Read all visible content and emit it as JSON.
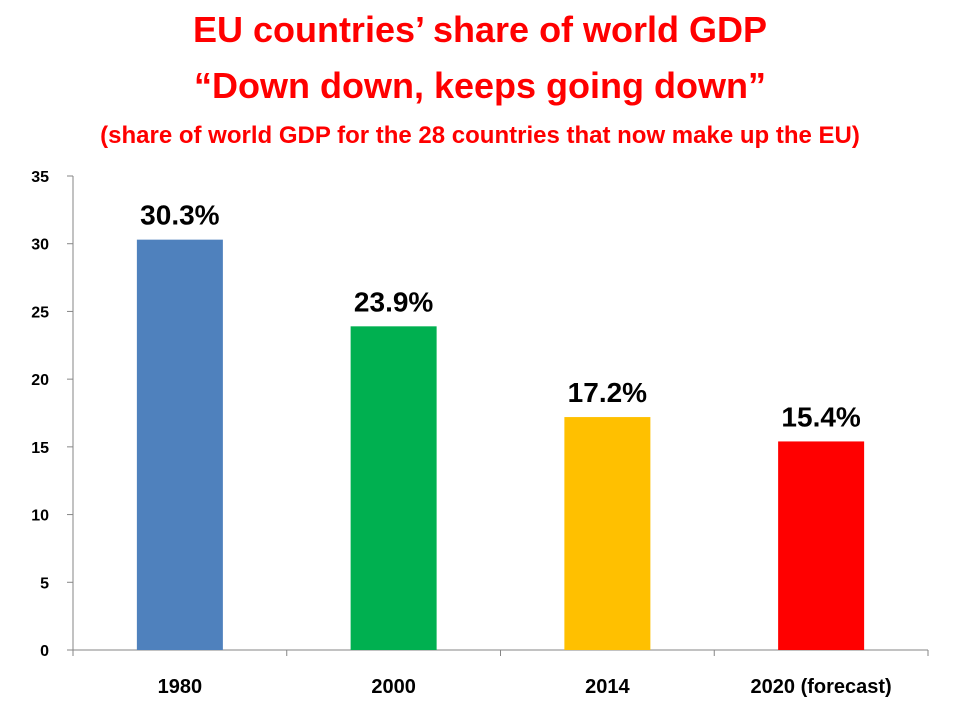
{
  "slide": {
    "title_line1": "EU countries’ share of world GDP",
    "title_line2": "“Down down, keeps going down”",
    "subtitle": "(share of world GDP for the 28 countries that now make up the EU)"
  },
  "chart_data": {
    "type": "bar",
    "title": "",
    "xlabel": "",
    "ylabel": "",
    "categories": [
      "1980",
      "2000",
      "2014",
      "2020 (forecast)"
    ],
    "values": [
      30.3,
      23.9,
      17.2,
      15.4
    ],
    "data_labels": [
      "30.3%",
      "23.9%",
      "17.2%",
      "15.4%"
    ],
    "colors": [
      "#4f81bd",
      "#00b050",
      "#ffc000",
      "#ff0000"
    ],
    "ylim": [
      0,
      35
    ],
    "yticks": [
      0,
      5,
      10,
      15,
      20,
      25,
      30,
      35
    ],
    "grid": false,
    "legend": "none"
  }
}
